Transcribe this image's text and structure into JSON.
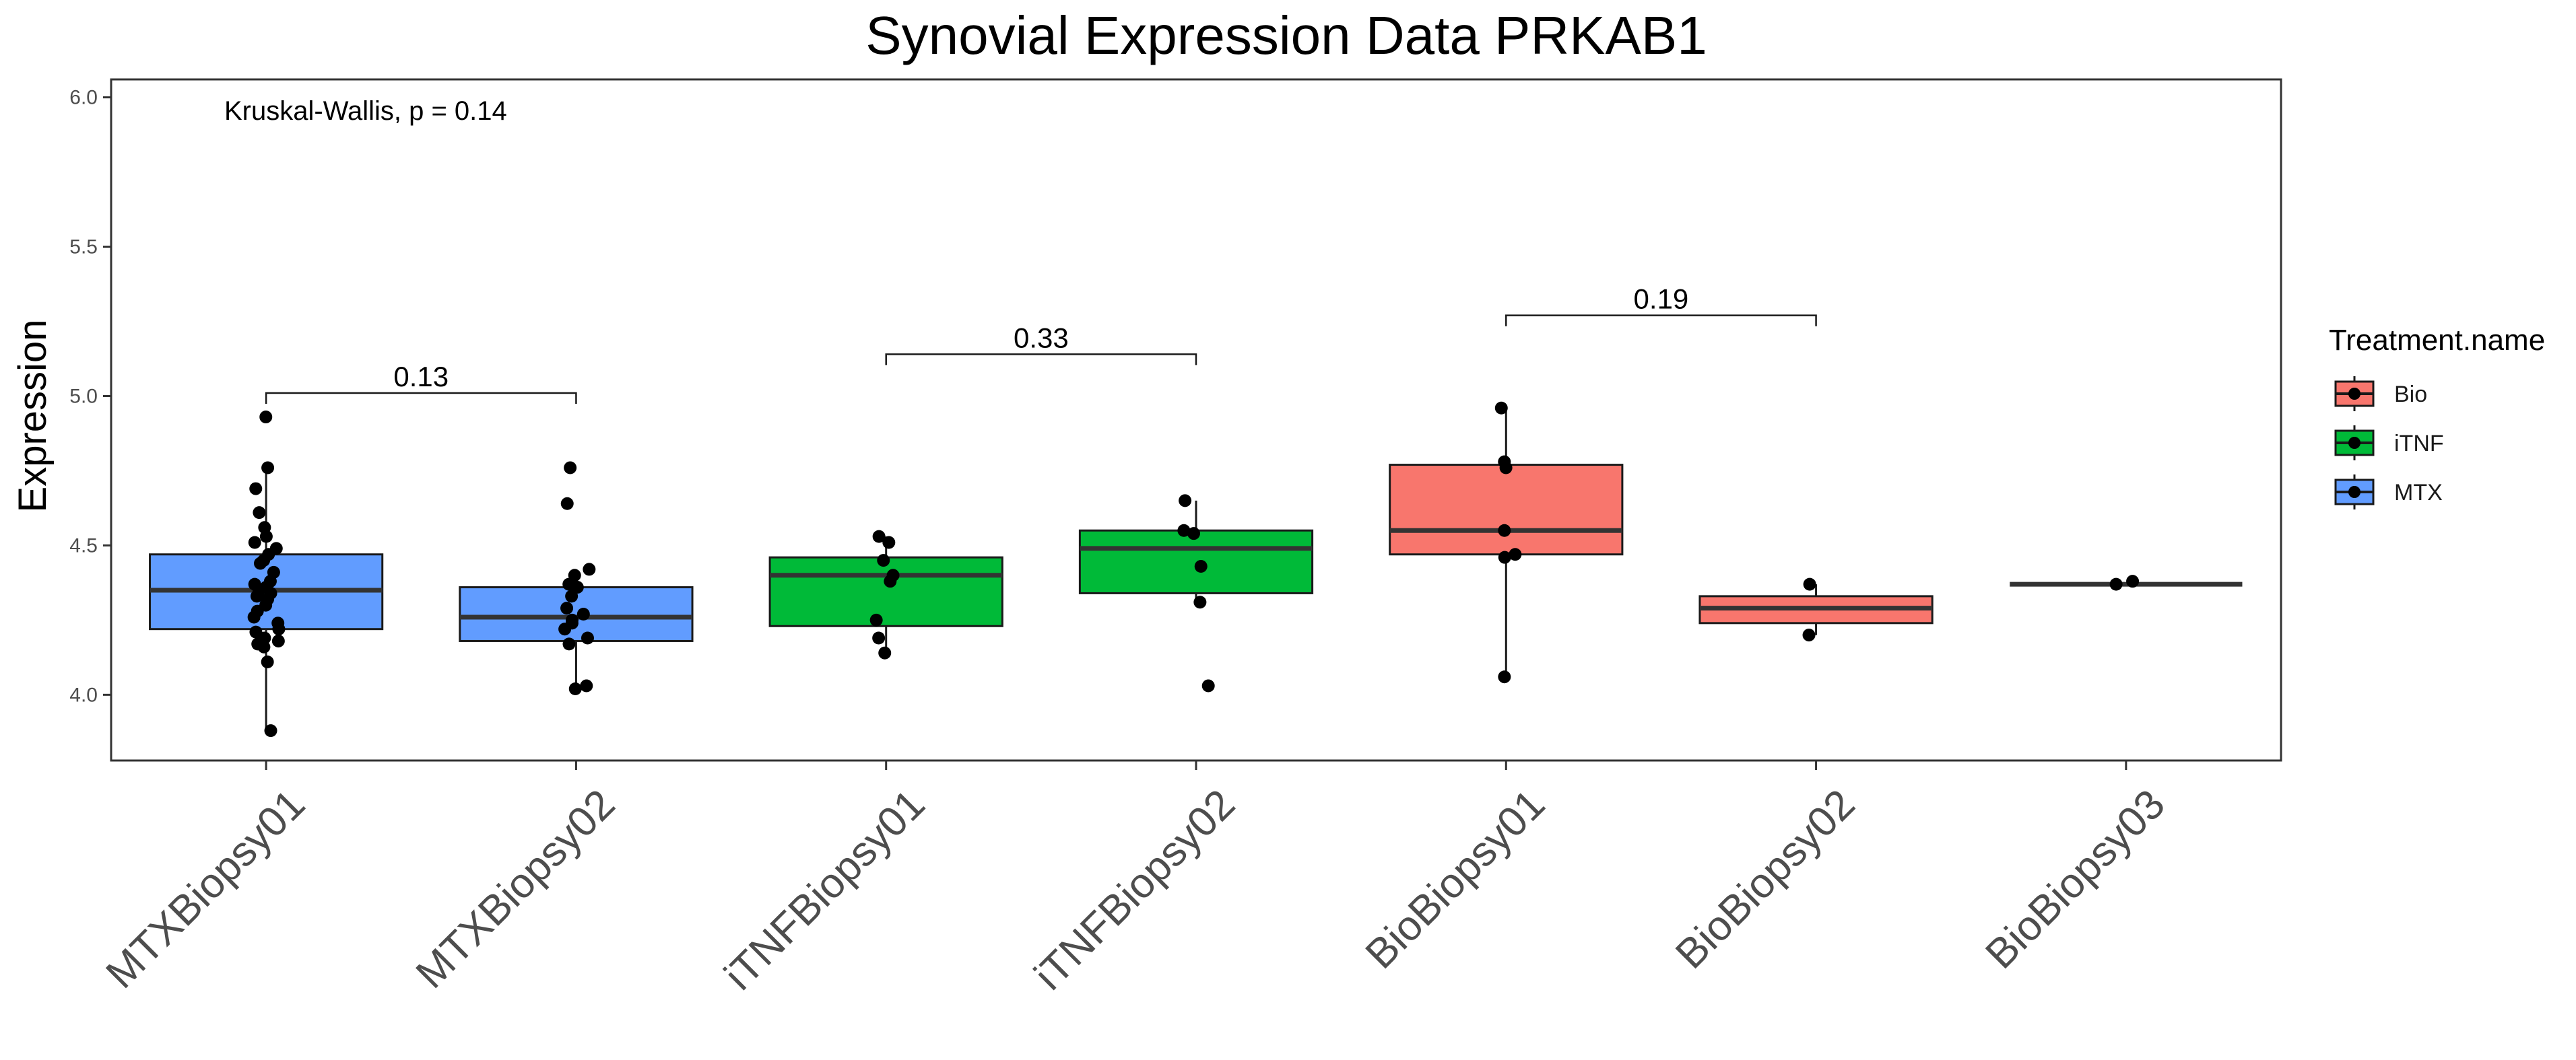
{
  "chart_data": {
    "type": "boxplot",
    "title": "Synovial Expression Data PRKAB1",
    "ylabel": "Expression",
    "xlabel": "",
    "ylim": [
      3.78,
      6.06
    ],
    "yticks": [
      "4.0",
      "4.5",
      "5.0",
      "5.5",
      "6.0"
    ],
    "grid": false,
    "annotation": "Kruskal-Wallis, p = 0.14",
    "legend": {
      "title": "Treatment.name",
      "placement": "right",
      "entries": [
        {
          "label": "Bio",
          "color": "#F8766D"
        },
        {
          "label": "iTNF",
          "color": "#00BA38"
        },
        {
          "label": "MTX",
          "color": "#619CFF"
        }
      ]
    },
    "categories": [
      "MTXBiopsy01",
      "MTXBiopsy02",
      "iTNFBiopsy01",
      "iTNFBiopsy02",
      "BioBiopsy01",
      "BioBiopsy02",
      "BioBiopsy03"
    ],
    "boxes": [
      {
        "category": "MTXBiopsy01",
        "group": "MTX",
        "whisker_low": 3.88,
        "q1": 4.22,
        "median": 4.35,
        "q3": 4.47,
        "whisker_high": 4.76,
        "points": [
          4.93,
          4.76,
          4.69,
          4.61,
          4.56,
          4.53,
          4.51,
          4.49,
          4.47,
          4.45,
          4.44,
          4.41,
          4.38,
          4.37,
          4.36,
          4.35,
          4.34,
          4.33,
          4.32,
          4.3,
          4.28,
          4.26,
          4.24,
          4.22,
          4.21,
          4.19,
          4.18,
          4.17,
          4.16,
          4.11,
          3.88
        ]
      },
      {
        "category": "MTXBiopsy02",
        "group": "MTX",
        "whisker_low": 4.02,
        "q1": 4.18,
        "median": 4.26,
        "q3": 4.36,
        "whisker_high": 4.42,
        "points": [
          4.76,
          4.64,
          4.42,
          4.4,
          4.37,
          4.36,
          4.33,
          4.29,
          4.27,
          4.25,
          4.24,
          4.22,
          4.19,
          4.17,
          4.03,
          4.02
        ]
      },
      {
        "category": "iTNFBiopsy01",
        "group": "iTNF",
        "whisker_low": 4.14,
        "q1": 4.23,
        "median": 4.4,
        "q3": 4.46,
        "whisker_high": 4.53,
        "points": [
          4.53,
          4.51,
          4.45,
          4.4,
          4.38,
          4.25,
          4.19,
          4.14
        ]
      },
      {
        "category": "iTNFBiopsy02",
        "group": "iTNF",
        "whisker_low": 4.31,
        "q1": 4.34,
        "median": 4.49,
        "q3": 4.55,
        "whisker_high": 4.65,
        "points": [
          4.65,
          4.55,
          4.54,
          4.43,
          4.31,
          4.03
        ]
      },
      {
        "category": "BioBiopsy01",
        "group": "Bio",
        "whisker_low": 4.06,
        "q1": 4.47,
        "median": 4.55,
        "q3": 4.77,
        "whisker_high": 4.96,
        "points": [
          4.96,
          4.78,
          4.76,
          4.55,
          4.47,
          4.46,
          4.06
        ]
      },
      {
        "category": "BioBiopsy02",
        "group": "Bio",
        "whisker_low": 4.2,
        "q1": 4.24,
        "median": 4.29,
        "q3": 4.33,
        "whisker_high": 4.37,
        "points": [
          4.37,
          4.2
        ]
      },
      {
        "category": "BioBiopsy03",
        "group": "Bio",
        "whisker_low": 4.37,
        "q1": 4.37,
        "median": 4.37,
        "q3": 4.37,
        "whisker_high": 4.37,
        "points": [
          4.38,
          4.37
        ]
      }
    ],
    "comparisons": [
      {
        "from": "MTXBiopsy01",
        "to": "MTXBiopsy02",
        "y": 5.01,
        "label": "0.13"
      },
      {
        "from": "iTNFBiopsy01",
        "to": "iTNFBiopsy02",
        "y": 5.14,
        "label": "0.33"
      },
      {
        "from": "BioBiopsy01",
        "to": "BioBiopsy02",
        "y": 5.27,
        "label": "0.19"
      }
    ]
  }
}
